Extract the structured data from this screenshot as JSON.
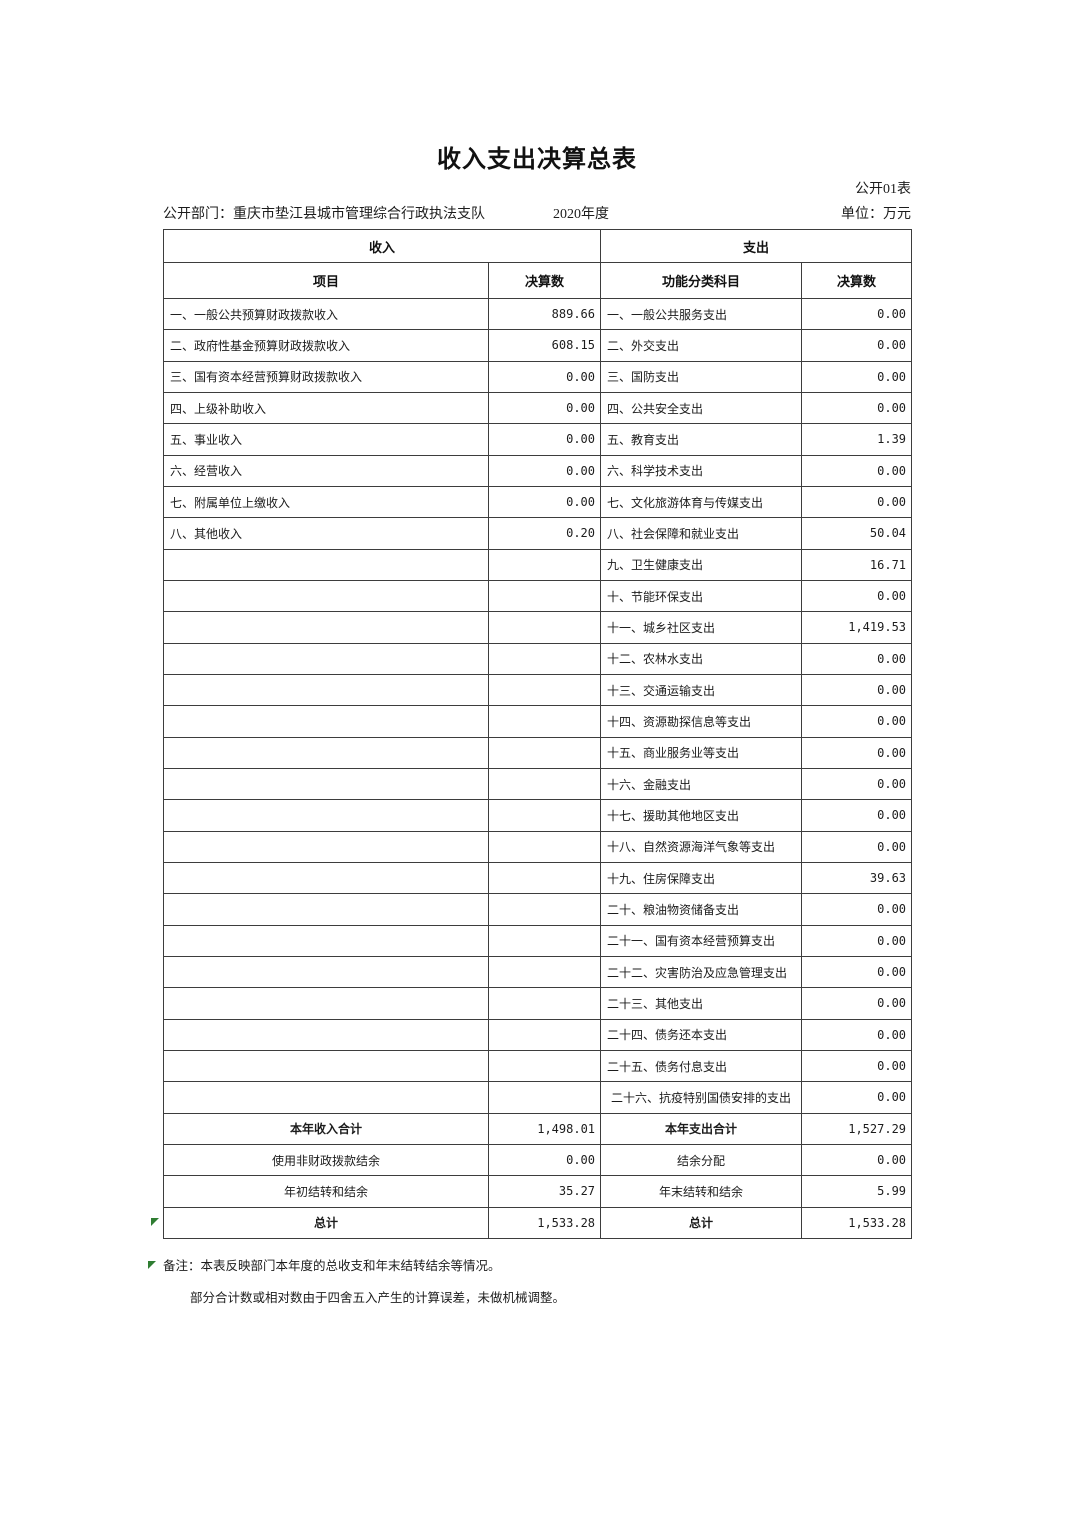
{
  "page": {
    "title": "收入支出决算总表",
    "table_code": "公开01表",
    "department": "公开部门：重庆市垫江县城市管理综合行政执法支队",
    "year": "2020年度",
    "unit": "单位：万元"
  },
  "table": {
    "section_income": "收入",
    "section_expense": "支出",
    "col_income_item": "项目",
    "col_income_amount": "决算数",
    "col_expense_item": "功能分类科目",
    "col_expense_amount": "决算数",
    "blank_income_rows": 18,
    "income_items": [
      {
        "label": "一、一般公共预算财政拨款收入",
        "value": "889.66"
      },
      {
        "label": "二、政府性基金预算财政拨款收入",
        "value": "608.15"
      },
      {
        "label": "三、国有资本经营预算财政拨款收入",
        "value": "0.00"
      },
      {
        "label": "四、上级补助收入",
        "value": "0.00"
      },
      {
        "label": "五、事业收入",
        "value": "0.00"
      },
      {
        "label": "六、经营收入",
        "value": "0.00"
      },
      {
        "label": "七、附属单位上缴收入",
        "value": "0.00"
      },
      {
        "label": "八、其他收入",
        "value": "0.20"
      }
    ],
    "income_summary": [
      {
        "label": "本年收入合计",
        "value": "1,498.01",
        "bold": true
      },
      {
        "label": "使用非财政拨款结余",
        "value": "0.00",
        "bold": false
      },
      {
        "label": "年初结转和结余",
        "value": "35.27",
        "bold": false
      },
      {
        "label": "总计",
        "value": "1,533.28",
        "bold": true
      }
    ],
    "expense_items": [
      {
        "label": "一、一般公共服务支出",
        "value": "0.00"
      },
      {
        "label": "二、外交支出",
        "value": "0.00"
      },
      {
        "label": "三、国防支出",
        "value": "0.00"
      },
      {
        "label": "四、公共安全支出",
        "value": "0.00"
      },
      {
        "label": "五、教育支出",
        "value": "1.39"
      },
      {
        "label": "六、科学技术支出",
        "value": "0.00"
      },
      {
        "label": "七、文化旅游体育与传媒支出",
        "value": "0.00"
      },
      {
        "label": "八、社会保障和就业支出",
        "value": "50.04"
      },
      {
        "label": "九、卫生健康支出",
        "value": "16.71"
      },
      {
        "label": "十、节能环保支出",
        "value": "0.00"
      },
      {
        "label": "十一、城乡社区支出",
        "value": "1,419.53"
      },
      {
        "label": "十二、农林水支出",
        "value": "0.00"
      },
      {
        "label": "十三、交通运输支出",
        "value": "0.00"
      },
      {
        "label": "十四、资源勘探信息等支出",
        "value": "0.00"
      },
      {
        "label": "十五、商业服务业等支出",
        "value": "0.00"
      },
      {
        "label": "十六、金融支出",
        "value": "0.00"
      },
      {
        "label": "十七、援助其他地区支出",
        "value": "0.00"
      },
      {
        "label": "十八、自然资源海洋气象等支出",
        "value": "0.00"
      },
      {
        "label": "十九、住房保障支出",
        "value": "39.63"
      },
      {
        "label": "二十、粮油物资储备支出",
        "value": "0.00"
      },
      {
        "label": "二十一、国有资本经营预算支出",
        "value": "0.00"
      },
      {
        "label": "二十二、灾害防治及应急管理支出",
        "value": "0.00"
      },
      {
        "label": "二十三、其他支出",
        "value": "0.00"
      },
      {
        "label": "二十四、债务还本支出",
        "value": "0.00"
      },
      {
        "label": "二十五、债务付息支出",
        "value": "0.00"
      },
      {
        "label": "二十六、抗疫特别国债安排的支出",
        "value": "0.00",
        "align": "center"
      }
    ],
    "expense_summary": [
      {
        "label": "本年支出合计",
        "value": "1,527.29",
        "bold": true
      },
      {
        "label": "结余分配",
        "value": "0.00",
        "bold": false
      },
      {
        "label": "年末结转和结余",
        "value": "5.99",
        "bold": false
      },
      {
        "label": "总计",
        "value": "1,533.28",
        "bold": true
      }
    ]
  },
  "notes": {
    "line1": "备注：本表反映部门本年度的总收支和年末结转结余等情况。",
    "line2": "部分合计数或相对数由于四舍五入产生的计算误差，未做机械调整。"
  }
}
